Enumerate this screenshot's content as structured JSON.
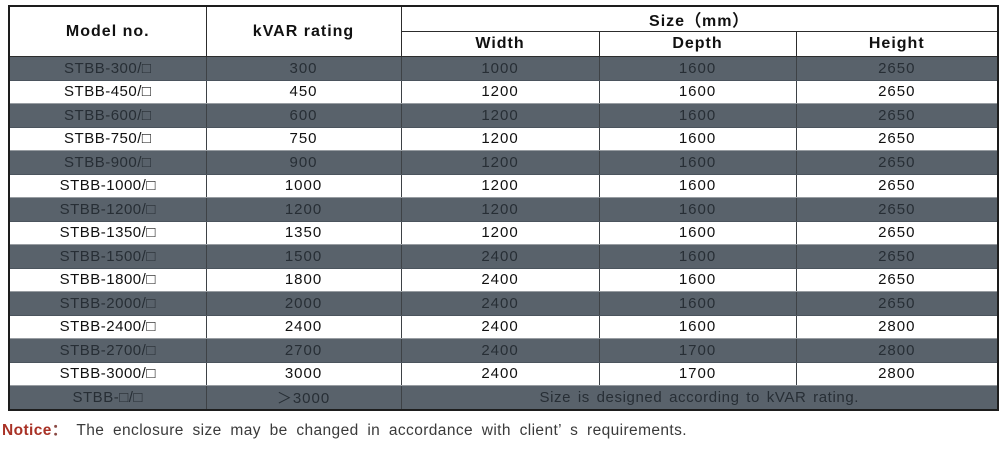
{
  "colors": {
    "row_shade": "#59626b",
    "shaded_text": "#272e35",
    "notice_red": "#a93226",
    "border_dark": "#1d1d1d"
  },
  "table": {
    "headers": {
      "model": "Model no.",
      "kvar": "kVAR rating",
      "size_group": "Size（mm）",
      "width": "Width",
      "depth": "Depth",
      "height": "Height"
    },
    "rows": [
      {
        "model": "STBB-300/□",
        "kvar": "300",
        "width": "1000",
        "depth": "1600",
        "height": "2650",
        "shaded": true
      },
      {
        "model": "STBB-450/□",
        "kvar": "450",
        "width": "1200",
        "depth": "1600",
        "height": "2650",
        "shaded": false
      },
      {
        "model": "STBB-600/□",
        "kvar": "600",
        "width": "1200",
        "depth": "1600",
        "height": "2650",
        "shaded": true
      },
      {
        "model": "STBB-750/□",
        "kvar": "750",
        "width": "1200",
        "depth": "1600",
        "height": "2650",
        "shaded": false
      },
      {
        "model": "STBB-900/□",
        "kvar": "900",
        "width": "1200",
        "depth": "1600",
        "height": "2650",
        "shaded": true
      },
      {
        "model": "STBB-1000/□",
        "kvar": "1000",
        "width": "1200",
        "depth": "1600",
        "height": "2650",
        "shaded": false
      },
      {
        "model": "STBB-1200/□",
        "kvar": "1200",
        "width": "1200",
        "depth": "1600",
        "height": "2650",
        "shaded": true
      },
      {
        "model": "STBB-1350/□",
        "kvar": "1350",
        "width": "1200",
        "depth": "1600",
        "height": "2650",
        "shaded": false
      },
      {
        "model": "STBB-1500/□",
        "kvar": "1500",
        "width": "2400",
        "depth": "1600",
        "height": "2650",
        "shaded": true
      },
      {
        "model": "STBB-1800/□",
        "kvar": "1800",
        "width": "2400",
        "depth": "1600",
        "height": "2650",
        "shaded": false
      },
      {
        "model": "STBB-2000/□",
        "kvar": "2000",
        "width": "2400",
        "depth": "1600",
        "height": "2650",
        "shaded": true
      },
      {
        "model": "STBB-2400/□",
        "kvar": "2400",
        "width": "2400",
        "depth": "1600",
        "height": "2800",
        "shaded": false
      },
      {
        "model": "STBB-2700/□",
        "kvar": "2700",
        "width": "2400",
        "depth": "1700",
        "height": "2800",
        "shaded": true
      },
      {
        "model": "STBB-3000/□",
        "kvar": "3000",
        "width": "2400",
        "depth": "1700",
        "height": "2800",
        "shaded": false
      }
    ],
    "footer_row": {
      "model": "STBB-□/□",
      "kvar": "＞3000",
      "note": "Size is designed according to kVAR rating.",
      "shaded": true
    }
  },
  "notice": {
    "label": "Notice",
    "colon": "：",
    "text": "The enclosure size may be changed in accordance with client’ s requirements."
  }
}
